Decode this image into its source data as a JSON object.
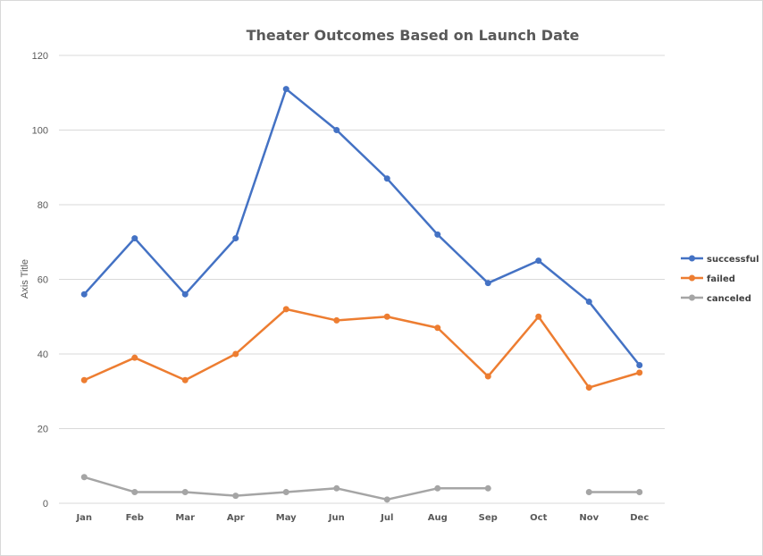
{
  "chart_data": {
    "type": "line",
    "title": "Theater Outcomes Based on Launch Date",
    "xlabel": "",
    "ylabel": "Axis Title",
    "categories": [
      "Jan",
      "Feb",
      "Mar",
      "Apr",
      "May",
      "Jun",
      "Jul",
      "Aug",
      "Sep",
      "Oct",
      "Nov",
      "Dec"
    ],
    "ylim": [
      0,
      120
    ],
    "yticks": [
      0,
      20,
      40,
      60,
      80,
      100,
      120
    ],
    "grid": true,
    "legend_position": "right",
    "series": [
      {
        "name": "successful",
        "color": "#4472c4",
        "values": [
          56,
          71,
          56,
          71,
          111,
          100,
          87,
          72,
          59,
          65,
          54,
          37
        ]
      },
      {
        "name": "failed",
        "color": "#ed7d31",
        "values": [
          33,
          39,
          33,
          40,
          52,
          49,
          50,
          47,
          34,
          50,
          31,
          35
        ]
      },
      {
        "name": "canceled",
        "color": "#a5a5a5",
        "values": [
          7,
          3,
          3,
          2,
          3,
          4,
          1,
          4,
          4,
          null,
          3,
          3
        ]
      }
    ]
  }
}
